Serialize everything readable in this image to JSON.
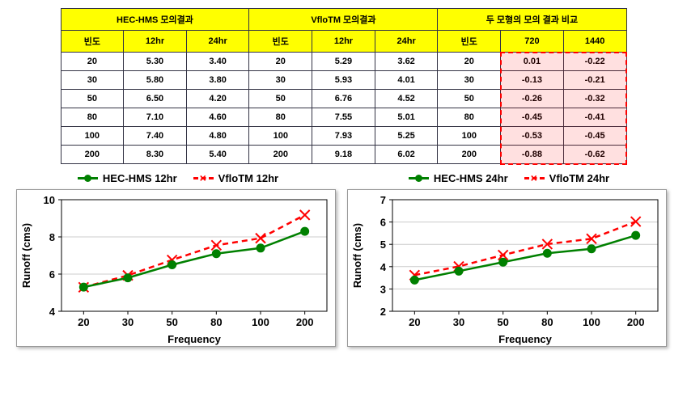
{
  "table": {
    "group_headers": [
      "HEC-HMS 모의결과",
      "VfloTM 모의결과",
      "두 모형의 모의 결과 비교"
    ],
    "sub_headers": [
      [
        "빈도",
        "12hr",
        "24hr"
      ],
      [
        "빈도",
        "12hr",
        "24hr"
      ],
      [
        "빈도",
        "720",
        "1440"
      ]
    ],
    "rows": [
      [
        "20",
        "5.30",
        "3.40",
        "20",
        "5.29",
        "3.62",
        "20",
        "0.01",
        "-0.22"
      ],
      [
        "30",
        "5.80",
        "3.80",
        "30",
        "5.93",
        "4.01",
        "30",
        "-0.13",
        "-0.21"
      ],
      [
        "50",
        "6.50",
        "4.20",
        "50",
        "6.76",
        "4.52",
        "50",
        "-0.26",
        "-0.32"
      ],
      [
        "80",
        "7.10",
        "4.60",
        "80",
        "7.55",
        "5.01",
        "80",
        "-0.45",
        "-0.41"
      ],
      [
        "100",
        "7.40",
        "4.80",
        "100",
        "7.93",
        "5.25",
        "100",
        "-0.53",
        "-0.45"
      ],
      [
        "200",
        "8.30",
        "5.40",
        "200",
        "9.18",
        "6.02",
        "200",
        "-0.88",
        "-0.62"
      ]
    ],
    "highlight": {
      "col_start": 7,
      "col_span": 2,
      "all_data_rows": true
    },
    "border_color": "#333344",
    "header_bg": "#ffff00",
    "header_fg": "#000000"
  },
  "chart_left": {
    "type": "line",
    "legend": [
      {
        "name": "HEC-HMS 12hr",
        "style": "solid",
        "color": "#008000",
        "marker": "circle"
      },
      {
        "name": "VfloTM 12hr",
        "style": "dash",
        "color": "#ff0000",
        "marker": "x"
      }
    ],
    "x_categories": [
      "20",
      "30",
      "50",
      "80",
      "100",
      "200"
    ],
    "series": {
      "hec": [
        5.3,
        5.8,
        6.5,
        7.1,
        7.4,
        8.3
      ],
      "vflo": [
        5.29,
        5.93,
        6.76,
        7.55,
        7.93,
        9.18
      ]
    },
    "ylabel": "Runoff (cms)",
    "xlabel": "Frequency",
    "ylim": [
      4,
      10
    ],
    "yticks": [
      4,
      6,
      8,
      10
    ],
    "grid_color": "#cccccc",
    "plot_bg": "#ffffff",
    "axis_font_size": 13,
    "line_width": 2.5,
    "marker_size": 5
  },
  "chart_right": {
    "type": "line",
    "legend": [
      {
        "name": "HEC-HMS 24hr",
        "style": "solid",
        "color": "#008000",
        "marker": "circle"
      },
      {
        "name": "VfloTM 24hr",
        "style": "dash",
        "color": "#ff0000",
        "marker": "x"
      }
    ],
    "x_categories": [
      "20",
      "30",
      "50",
      "80",
      "100",
      "200"
    ],
    "series": {
      "hec": [
        3.4,
        3.8,
        4.2,
        4.6,
        4.8,
        5.4
      ],
      "vflo": [
        3.62,
        4.01,
        4.52,
        5.01,
        5.25,
        6.02
      ]
    },
    "ylabel": "Runoff (cms)",
    "xlabel": "Frequency",
    "ylim": [
      2,
      7
    ],
    "yticks": [
      2,
      3,
      4,
      5,
      6,
      7
    ],
    "grid_color": "#cccccc",
    "plot_bg": "#ffffff",
    "axis_font_size": 13,
    "line_width": 2.5,
    "marker_size": 5
  }
}
